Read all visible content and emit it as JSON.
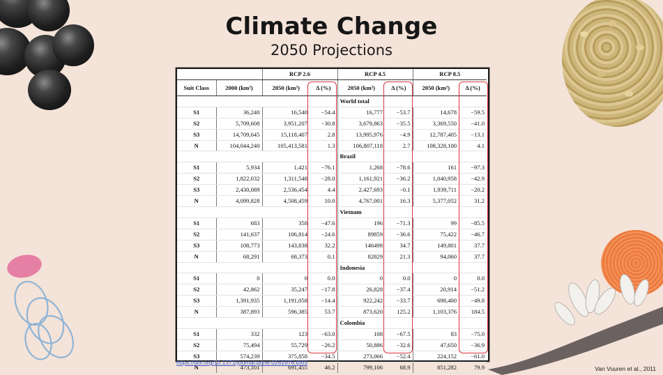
{
  "slide": {
    "title": "Climate Change",
    "subtitle": "2050 Projections",
    "link": "https://doi.org/10.1371/journal.pone.0261976.t003",
    "citation": "Van Vuuren et al., 2011"
  },
  "table": {
    "groups": [
      "RCP 2.6",
      "RCP 4.5",
      "RCP 8.5"
    ],
    "headers": [
      "Suit Class",
      "2000 (km²)",
      "2050 (km²)",
      "Δ (%)",
      "2050 (km²)",
      "Δ (%)",
      "2050 (km²)",
      "Δ (%)"
    ],
    "regions": [
      {
        "name": "World total",
        "rows": [
          [
            "S1",
            "36,240",
            "16,540",
            "−54.4",
            "16,777",
            "−53.7",
            "14,678",
            "−59.5"
          ],
          [
            "S2",
            "5,709,608",
            "3,951,207",
            "−30.8",
            "3,679,863",
            "−35.5",
            "3,369,550",
            "−41.0"
          ],
          [
            "S3",
            "14,709,645",
            "15,118,407",
            "2.8",
            "13,995,976",
            "−4.9",
            "12,787,405",
            "−13.1"
          ],
          [
            "N",
            "104,044,240",
            "105,413,581",
            "1.3",
            "106,807,118",
            "2.7",
            "108,328,100",
            "4.1"
          ]
        ]
      },
      {
        "name": "Brazil",
        "rows": [
          [
            "S1",
            "5,934",
            "1,421",
            "−76.1",
            "1,268",
            "−78.6",
            "161",
            "−97.3"
          ],
          [
            "S2",
            "1,822,032",
            "1,311,548",
            "−28.0",
            "1,161,921",
            "−36.2",
            "1,040,958",
            "−42.9"
          ],
          [
            "S3",
            "2,430,089",
            "2,536,454",
            "4.4",
            "2,427,693",
            "−0.1",
            "1,939,711",
            "−20.2"
          ],
          [
            "N",
            "4,099,828",
            "4,508,459",
            "10.0",
            "4,767,001",
            "16.3",
            "5,377,052",
            "31.2"
          ]
        ]
      },
      {
        "name": "Vietnam",
        "rows": [
          [
            "S1",
            "683",
            "358",
            "−47.6",
            "196",
            "−71.3",
            "99",
            "−85.5"
          ],
          [
            "S2",
            "141,637",
            "106,814",
            "−24.6",
            "89859",
            "−36.6",
            "75,422",
            "−46.7"
          ],
          [
            "S3",
            "108,773",
            "143,838",
            "32.2",
            "146498",
            "34.7",
            "149,801",
            "37.7"
          ],
          [
            "N",
            "68,291",
            "68,373",
            "0.1",
            "82829",
            "21.3",
            "94,060",
            "37.7"
          ]
        ]
      },
      {
        "name": "Indonesia",
        "rows": [
          [
            "S1",
            "0",
            "0",
            "0.0",
            "0",
            "0.0",
            "0",
            "0.0"
          ],
          [
            "S2",
            "42,862",
            "35,247",
            "−17.8",
            "26,828",
            "−37.4",
            "20,914",
            "−51.2"
          ],
          [
            "S3",
            "1,391,935",
            "1,191,058",
            "−14.4",
            "922,242",
            "−33.7",
            "698,400",
            "−49.8"
          ],
          [
            "N",
            "387,893",
            "596,385",
            "53.7",
            "873,620",
            "125.2",
            "1,103,376",
            "184.5"
          ]
        ]
      },
      {
        "name": "Colombia",
        "rows": [
          [
            "S1",
            "332",
            "123",
            "−63.0",
            "108",
            "−67.5",
            "83",
            "−75.0"
          ],
          [
            "S2",
            "75,494",
            "55,729",
            "−26.2",
            "50,886",
            "−32.6",
            "47,650",
            "−36.9"
          ],
          [
            "S3",
            "574,239",
            "375,858",
            "−34.5",
            "273,066",
            "−52.4",
            "224,152",
            "−61.0"
          ],
          [
            "N",
            "473,101",
            "691,455",
            "46.2",
            "799,106",
            "68.9",
            "851,282",
            "79.9"
          ]
        ]
      }
    ]
  },
  "colors": {
    "background": "#f4e3d9",
    "highlight": "#d8333c",
    "link": "#3a58c8"
  }
}
